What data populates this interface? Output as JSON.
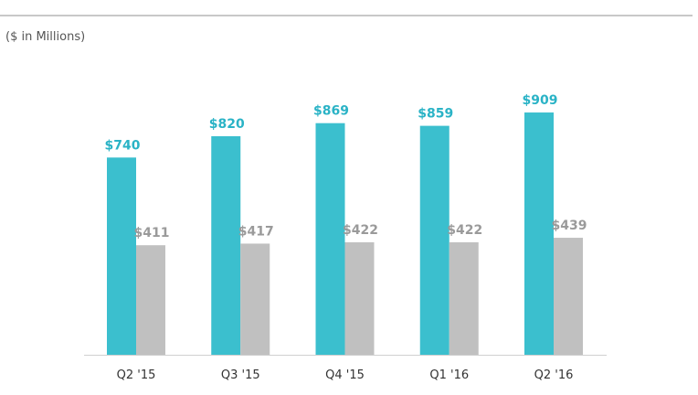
{
  "unit_label": "($ in Millions)",
  "colors": {
    "series_1": "#3bbfce",
    "series_2": "#c0c0c0",
    "series_1_label": "#2ab3c6",
    "series_2_label": "#9a9a9a",
    "axis": "#d0d0d0"
  },
  "chart_data": {
    "type": "bar",
    "categories": [
      "Q2 '15",
      "Q3 '15",
      "Q4 '15",
      "Q1 '16",
      "Q2 '16"
    ],
    "series": [
      {
        "values": [
          740,
          820,
          869,
          859,
          909
        ],
        "labels": [
          "$740",
          "$820",
          "$869",
          "$859",
          "$909"
        ]
      },
      {
        "values": [
          411,
          417,
          422,
          422,
          439
        ],
        "labels": [
          "$411",
          "$417",
          "$422",
          "$422",
          "$439"
        ]
      }
    ],
    "title": "",
    "xlabel": "",
    "ylabel": "($ in Millions)",
    "ylim": [
      0,
      1000
    ],
    "grid": false,
    "legend": "none"
  }
}
